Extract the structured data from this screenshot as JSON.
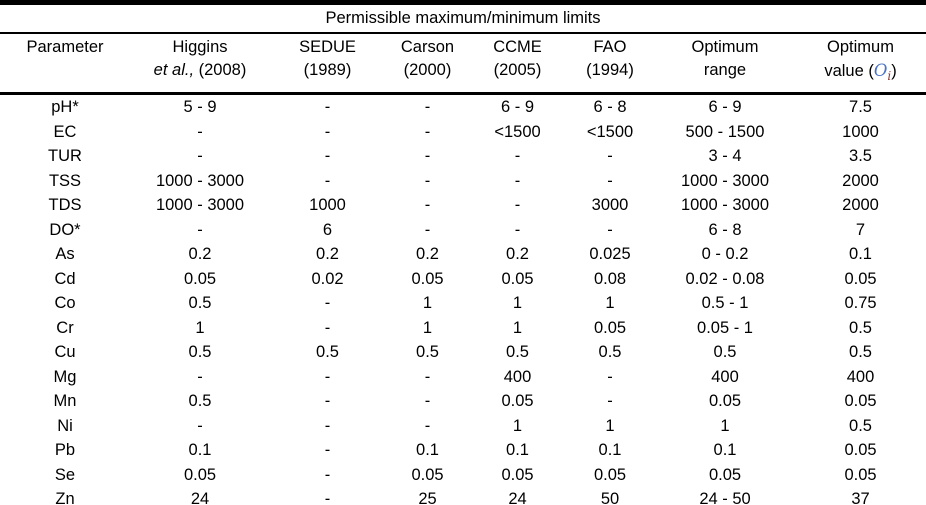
{
  "page": {
    "background_color": "#ffffff",
    "text_color": "#000000"
  },
  "table": {
    "spanning_header": "Permissible maximum/minimum limits",
    "columns": {
      "parameter": "Parameter",
      "higgins_line1": "Higgins",
      "higgins_line2_italic": "et al.,",
      "higgins_line2_year": "(2008)",
      "sedue_line1": "SEDUE",
      "sedue_line2": "(1989)",
      "carson_line1": "Carson",
      "carson_line2": "(2000)",
      "ccme_line1": "CCME",
      "ccme_line2": "(2005)",
      "fao_line1": "FAO",
      "fao_line2": "(1994)",
      "optimum_range_line1": "Optimum",
      "optimum_range_line2": "range",
      "optimum_value_line1": "Optimum",
      "optimum_value_prefix": "value (",
      "optimum_value_symbol": "O",
      "optimum_value_subscript": "i",
      "optimum_value_suffix": ")",
      "optimum_value_symbol_color": "#4a72c4",
      "optimum_value_subscript_color": "#8a3b38"
    },
    "rows": [
      [
        "pH*",
        "5 - 9",
        "-",
        "-",
        "6 - 9",
        "6 - 8",
        "6 - 9",
        "7.5"
      ],
      [
        "EC",
        "-",
        "-",
        "-",
        "<1500",
        "<1500",
        "500 - 1500",
        "1000"
      ],
      [
        "TUR",
        "-",
        "-",
        "-",
        "-",
        "-",
        "3 - 4",
        "3.5"
      ],
      [
        "TSS",
        "1000 - 3000",
        "-",
        "-",
        "-",
        "-",
        "1000 - 3000",
        "2000"
      ],
      [
        "TDS",
        "1000 - 3000",
        "1000",
        "-",
        "-",
        "3000",
        "1000 - 3000",
        "2000"
      ],
      [
        "DO*",
        "-",
        "6",
        "-",
        "-",
        "-",
        "6 - 8",
        "7"
      ],
      [
        "As",
        "0.2",
        "0.2",
        "0.2",
        "0.2",
        "0.025",
        "0 - 0.2",
        "0.1"
      ],
      [
        "Cd",
        "0.05",
        "0.02",
        "0.05",
        "0.05",
        "0.08",
        "0.02 - 0.08",
        "0.05"
      ],
      [
        "Co",
        "0.5",
        "-",
        "1",
        "1",
        "1",
        "0.5 - 1",
        "0.75"
      ],
      [
        "Cr",
        "1",
        "-",
        "1",
        "1",
        "0.05",
        "0.05 - 1",
        "0.5"
      ],
      [
        "Cu",
        "0.5",
        "0.5",
        "0.5",
        "0.5",
        "0.5",
        "0.5",
        "0.5"
      ],
      [
        "Mg",
        "-",
        "-",
        "-",
        "400",
        "-",
        "400",
        "400"
      ],
      [
        "Mn",
        "0.5",
        "-",
        "-",
        "0.05",
        "-",
        "0.05",
        "0.05"
      ],
      [
        "Ni",
        "-",
        "-",
        "-",
        "1",
        "1",
        "1",
        "0.5"
      ],
      [
        "Pb",
        "0.1",
        "-",
        "0.1",
        "0.1",
        "0.1",
        "0.1",
        "0.05"
      ],
      [
        "Se",
        "0.05",
        "-",
        "0.05",
        "0.05",
        "0.05",
        "0.05",
        "0.05"
      ],
      [
        "Zn",
        "24",
        "-",
        "25",
        "24",
        "50",
        "24 - 50",
        "37"
      ]
    ]
  }
}
